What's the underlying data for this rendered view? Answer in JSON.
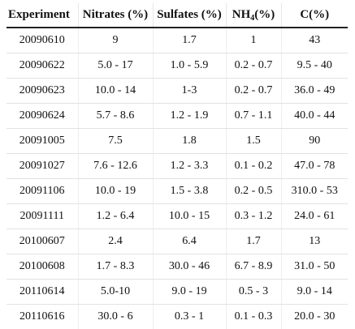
{
  "headers": {
    "experiment": "Experiment",
    "nitrates": "Nitrates (%)",
    "sulfates": "Sulfates (%)",
    "nh4_main": "NH",
    "nh4_sub": "4",
    "nh4_unit": "(%)",
    "carbon": "C(%)"
  },
  "rows": [
    [
      "20090610",
      "9",
      "1.7",
      "1",
      "43"
    ],
    [
      "20090622",
      "5.0 - 17",
      "1.0 - 5.9",
      "0.2 - 0.7",
      "9.5 - 40"
    ],
    [
      "20090623",
      "10.0 - 14",
      "1-3",
      "0.2 - 0.7",
      "36.0 - 49"
    ],
    [
      "20090624",
      "5.7 - 8.6",
      "1.2 - 1.9",
      "0.7 - 1.1",
      "40.0 - 44"
    ],
    [
      "20091005",
      "7.5",
      "1.8",
      "1.5",
      "90"
    ],
    [
      "20091027",
      "7.6 - 12.6",
      "1.2 - 3.3",
      "0.1 - 0.2",
      "47.0 - 78"
    ],
    [
      "20091106",
      "10.0 - 19",
      "1.5 - 3.8",
      "0.2 - 0.5",
      "310.0 - 53"
    ],
    [
      "20091111",
      "1.2 - 6.4",
      "10.0 - 15",
      "0.3 - 1.2",
      "24.0 - 61"
    ],
    [
      "20100607",
      "2.4",
      "6.4",
      "1.7",
      "13"
    ],
    [
      "20100608",
      "1.7 - 8.3",
      "30.0 - 46",
      "6.7 - 8.9",
      "31.0 - 50"
    ],
    [
      "20110614",
      "5.0-10",
      "9.0 - 19",
      "0.5 - 3",
      "9.0 - 14"
    ],
    [
      "20110616",
      "30.0 - 6",
      "0.3 - 1",
      "0.1 - 0.3",
      "20.0 - 30"
    ]
  ]
}
